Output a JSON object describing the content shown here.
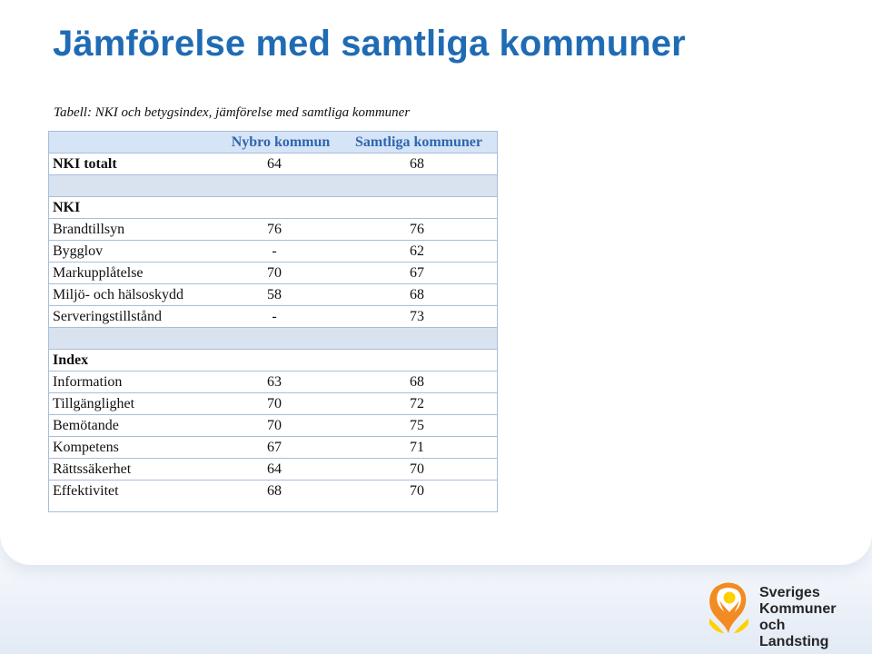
{
  "slide": {
    "title": "Jämförelse med samtliga kommuner",
    "caption": "Tabell: NKI och betygsindex, jämförelse med samtliga kommuner"
  },
  "table": {
    "headers": [
      "",
      "Nybro kommun",
      "Samtliga kommuner"
    ],
    "rows": [
      {
        "label": "NKI totalt",
        "a": "64",
        "b": "68"
      },
      {
        "label": "",
        "a": "",
        "b": ""
      },
      {
        "label": "NKI",
        "a": "",
        "b": ""
      },
      {
        "label": "Brandtillsyn",
        "a": "76",
        "b": "76"
      },
      {
        "label": "Bygglov",
        "a": "-",
        "b": "62"
      },
      {
        "label": "Markupplåtelse",
        "a": "70",
        "b": "67"
      },
      {
        "label": "Miljö- och hälsoskydd",
        "a": "58",
        "b": "68"
      },
      {
        "label": "Serveringstillstånd",
        "a": "-",
        "b": "73"
      },
      {
        "label": "",
        "a": "",
        "b": ""
      },
      {
        "label": "Index",
        "a": "",
        "b": ""
      },
      {
        "label": "Information",
        "a": "63",
        "b": "68"
      },
      {
        "label": "Tillgänglighet",
        "a": "70",
        "b": "72"
      },
      {
        "label": "Bemötande",
        "a": "70",
        "b": "75"
      },
      {
        "label": "Kompetens",
        "a": "67",
        "b": "71"
      },
      {
        "label": "Rättssäkerhet",
        "a": "64",
        "b": "70"
      },
      {
        "label": "Effektivitet",
        "a": "68",
        "b": "70"
      }
    ]
  },
  "logo": {
    "icon": "sveriges-kommuner-och-landsting-logo-icon",
    "line1": "Sveriges",
    "line2": "Kommuner",
    "line3": "och Landsting"
  },
  "colors": {
    "title": "#1f6bb4",
    "table_header_bg": "#d6e4f7",
    "table_border": "#a8bed8",
    "logo_orange": "#f28b21",
    "logo_yellow": "#ffd100"
  }
}
